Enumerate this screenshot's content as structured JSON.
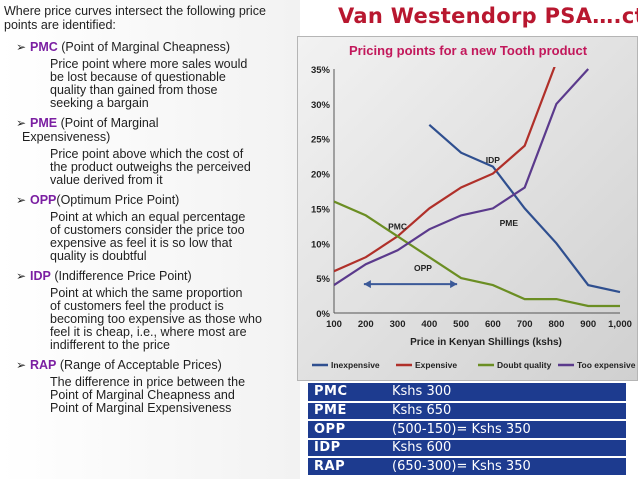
{
  "title": "Van Westendorp PSA….ctd.",
  "intro": "Where price curves intersect the following price points are identified:",
  "items": [
    {
      "abbr": "PMC",
      "head": " (Point of Marginal Cheapness)",
      "desc": [
        "Price point where more sales would",
        "be lost because of questionable",
        "quality than gained from those",
        "seeking a bargain"
      ]
    },
    {
      "abbr": "PME",
      "head": " (Point of Marginal",
      "head2": "Expensiveness)",
      "desc": [
        "Price point above which the cost of",
        "the product outweighs the perceived",
        "value derived from it"
      ]
    },
    {
      "abbr": "OPP",
      "head": "(Optimum Price Point)",
      "desc": [
        "Point at which an equal percentage",
        "of customers consider the price too",
        "expensive as feel it is so low that",
        "quality is doubtful"
      ]
    },
    {
      "abbr": "IDP",
      "head": " (Indifference Price Point)",
      "desc": [
        "Point at which the same proportion",
        "of customers feel the product is",
        "becoming too expensive as those who",
        "feel it is cheap, i.e., where most are",
        "indifferent to the price"
      ]
    },
    {
      "abbr": "RAP",
      "head": " (Range of Acceptable Prices)",
      "desc": [
        "The difference in price between the",
        "Point of Marginal Cheapness and",
        "Point of Marginal Expensiveness"
      ]
    }
  ],
  "table": [
    {
      "abbr": "PMC",
      "value": "Kshs 300"
    },
    {
      "abbr": "PME",
      "value": "Kshs 650"
    },
    {
      "abbr": "OPP",
      "value": "(500-150)= Kshs 350"
    },
    {
      "abbr": "IDP",
      "value": "Kshs 600"
    },
    {
      "abbr": "RAP",
      "value": "(650-300)= Kshs 350"
    }
  ],
  "colors": {
    "title": "#b8172f",
    "abbr": "#7b1fa2",
    "table_bg": "#1d3b8f",
    "chart_title": "#c2185b"
  },
  "chart_data": {
    "type": "line",
    "title": "Pricing points for a new Tooth product",
    "xlabel": "Price in Kenyan Shillings (kshs)",
    "ylabel": "",
    "x": [
      100,
      200,
      300,
      400,
      500,
      600,
      700,
      800,
      900,
      1000
    ],
    "x_tick_labels": [
      "100",
      "200",
      "300",
      "400",
      "500",
      "600",
      "700",
      "800",
      "900",
      "1,000"
    ],
    "y_tick_labels": [
      "0%",
      "5%",
      "10%",
      "15%",
      "20%",
      "25%",
      "30%",
      "35%"
    ],
    "ylim": [
      0,
      35
    ],
    "xlim": [
      100,
      1000
    ],
    "grid": false,
    "legend": "bottom",
    "series": [
      {
        "name": "Inexpensive",
        "color": "#2f4f8f",
        "values": [
          null,
          null,
          null,
          27,
          23,
          21,
          15,
          10,
          4,
          3
        ]
      },
      {
        "name": "Expensive",
        "color": "#b0302a",
        "values": [
          6,
          8,
          11,
          15,
          18,
          20,
          24,
          36,
          null,
          null
        ]
      },
      {
        "name": "Doubt quality",
        "color": "#6b8e23",
        "values": [
          16,
          14,
          11,
          8,
          5,
          4,
          2,
          2,
          1,
          1
        ]
      },
      {
        "name": "Too expensive",
        "color": "#5b3a8c",
        "values": [
          4,
          7,
          9,
          12,
          14,
          15,
          18,
          30,
          35,
          null
        ]
      }
    ],
    "annotations": [
      {
        "text": "IDP",
        "x": 600,
        "y": 21.5
      },
      {
        "text": "PMC",
        "x": 300,
        "y": 12
      },
      {
        "text": "PME",
        "x": 650,
        "y": 12.5
      },
      {
        "text": "OPP",
        "x": 380,
        "y": 6
      },
      {
        "text": "range arrow",
        "from": 150,
        "to": 500,
        "y": 4
      }
    ]
  }
}
